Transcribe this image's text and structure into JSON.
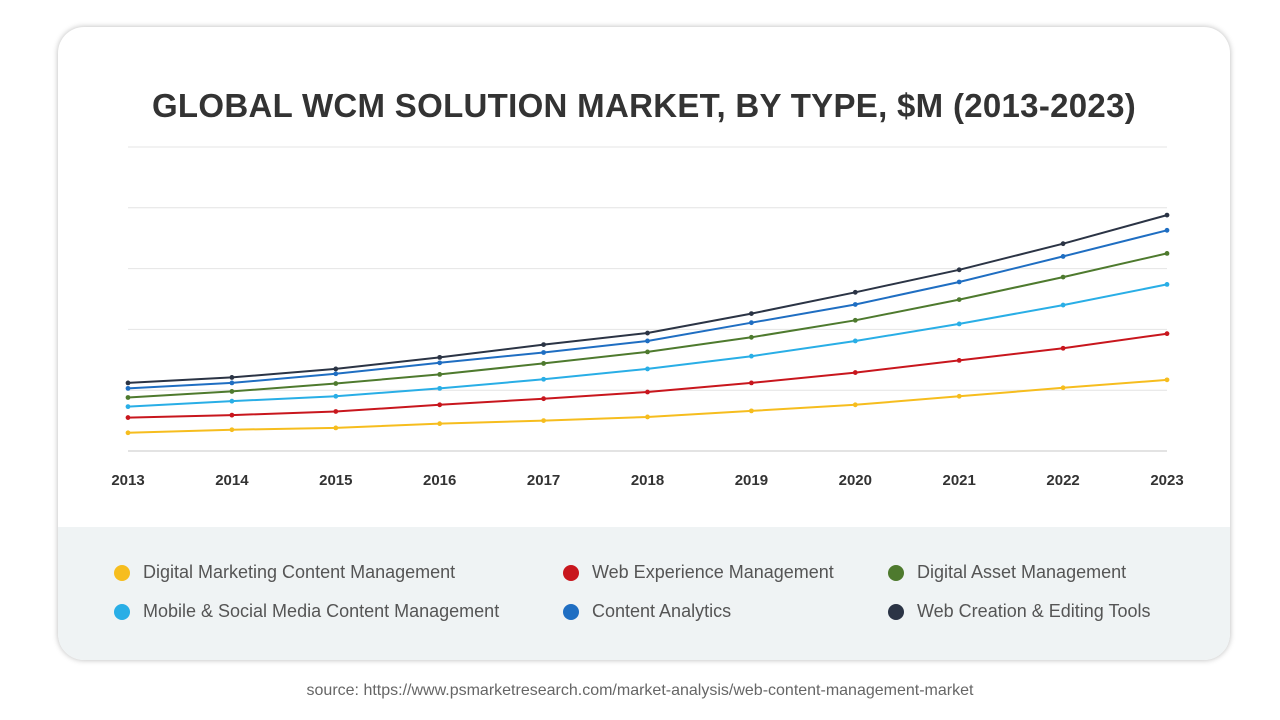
{
  "chart_data": {
    "type": "line",
    "title": "GLOBAL WCM SOLUTION MARKET, BY TYPE, $M (2013-2023)",
    "x": [
      "2013",
      "2014",
      "2015",
      "2016",
      "2017",
      "2018",
      "2019",
      "2020",
      "2021",
      "2022",
      "2023"
    ],
    "ylim": [
      0,
      5
    ],
    "grid": true,
    "legend_position": "bottom",
    "series": [
      {
        "name": "Digital Marketing Content Management",
        "color": "#f6bd1e",
        "values": [
          0.3,
          0.35,
          0.38,
          0.45,
          0.5,
          0.56,
          0.66,
          0.76,
          0.9,
          1.04,
          1.17
        ]
      },
      {
        "name": "Web Experience Management",
        "color": "#c8161d",
        "values": [
          0.55,
          0.59,
          0.65,
          0.76,
          0.86,
          0.97,
          1.12,
          1.29,
          1.49,
          1.69,
          1.93
        ]
      },
      {
        "name": "Digital Asset Management",
        "color": "#4e7a2e",
        "values": [
          0.88,
          0.98,
          1.11,
          1.26,
          1.44,
          1.63,
          1.87,
          2.15,
          2.49,
          2.86,
          3.25
        ]
      },
      {
        "name": "Mobile & Social Media Content Management",
        "color": "#29aee6",
        "values": [
          0.73,
          0.82,
          0.9,
          1.03,
          1.18,
          1.35,
          1.56,
          1.81,
          2.09,
          2.4,
          2.74
        ]
      },
      {
        "name": "Content Analytics",
        "color": "#1f6ec2",
        "values": [
          1.03,
          1.12,
          1.27,
          1.45,
          1.62,
          1.81,
          2.11,
          2.41,
          2.78,
          3.2,
          3.63
        ]
      },
      {
        "name": "Web Creation & Editing Tools",
        "color": "#2b3445",
        "values": [
          1.12,
          1.21,
          1.35,
          1.54,
          1.75,
          1.94,
          2.26,
          2.61,
          2.98,
          3.41,
          3.88
        ]
      }
    ]
  },
  "source_text": "source: https://www.psmarketresearch.com/market-analysis/web-content-management-market"
}
